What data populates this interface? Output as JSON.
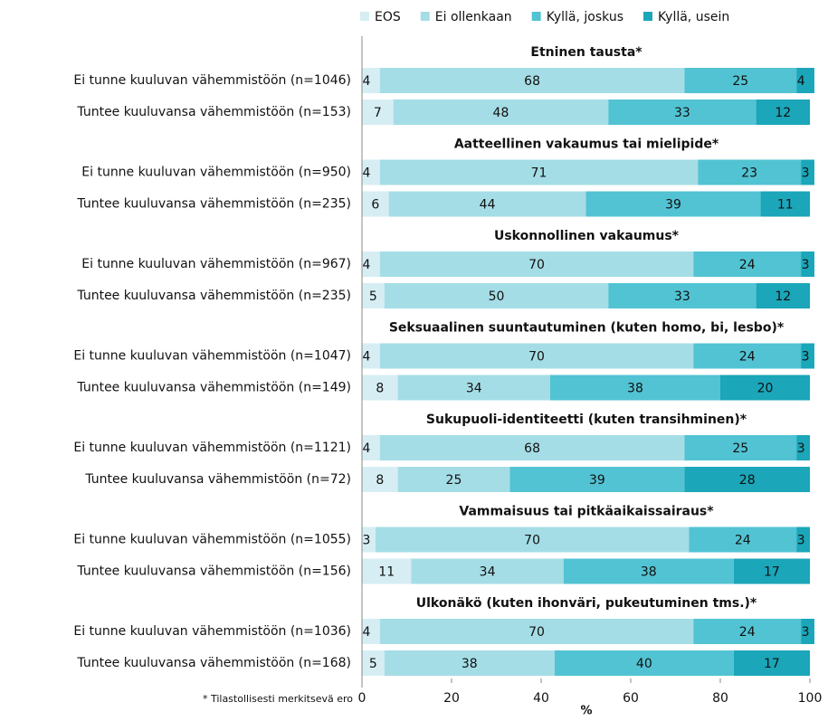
{
  "chart_data": {
    "type": "bar",
    "orientation": "horizontal",
    "stacked": true,
    "group_titles": [
      "Etninen tausta*",
      "Aatteellinen vakaumus tai mielipide*",
      "Uskonnollinen vakaumus*",
      "Seksuaalinen suuntautuminen (kuten homo, bi, lesbo)*",
      "Sukupuoli-identiteetti (kuten transihminen)*",
      "Vammaisuus tai pitkäaikaissairaus*",
      "Ulkonäkö (kuten ihonväri, pukeutuminen tms.)*"
    ],
    "categories": [
      "Ei tunne kuuluvan vähemmistöön (n=1046)",
      "Tuntee kuuluvansa vähemmistöön (n=153)",
      "Ei tunne kuuluvan vähemmistöön (n=950)",
      "Tuntee kuuluvansa vähemmistöön (n=235)",
      "Ei tunne kuuluvan vähemmistöön (n=967)",
      "Tuntee kuuluvansa vähemmistöön (n=235)",
      "Ei tunne kuuluvan vähemmistöön (n=1047)",
      "Tuntee kuuluvansa vähemmistöön (n=149)",
      "Ei tunne kuuluvan vähemmistöön (n=1121)",
      "Tuntee kuuluvansa vähemmistöön (n=72)",
      "Ei tunne kuuluvan vähemmistöön (n=1055)",
      "Tuntee kuuluvansa vähemmistöön (n=156)",
      "Ei tunne kuuluvan vähemmistöön (n=1036)",
      "Tuntee kuuluvansa vähemmistöön (n=168)"
    ],
    "series": [
      {
        "name": "EOS",
        "color": "#d6eef3",
        "values": [
          4,
          7,
          4,
          6,
          4,
          5,
          4,
          8,
          4,
          8,
          3,
          11,
          4,
          5
        ]
      },
      {
        "name": "Ei ollenkaan",
        "color": "#a5dde6",
        "values": [
          68,
          48,
          71,
          44,
          70,
          50,
          70,
          34,
          68,
          25,
          70,
          34,
          70,
          38
        ]
      },
      {
        "name": "Kyllä, joskus",
        "color": "#52c3d3",
        "values": [
          25,
          33,
          23,
          39,
          24,
          33,
          24,
          38,
          25,
          39,
          24,
          38,
          24,
          40
        ]
      },
      {
        "name": "Kyllä, usein",
        "color": "#1ba6b9",
        "values": [
          4,
          12,
          3,
          11,
          3,
          12,
          3,
          20,
          3,
          28,
          3,
          17,
          3,
          17
        ]
      }
    ],
    "xlim": [
      0,
      100
    ],
    "xticks": [
      0,
      20,
      40,
      60,
      80,
      100
    ],
    "xlabel": "%",
    "legend": "top",
    "note": "* Tilastollisesti merkitsevä ero"
  }
}
